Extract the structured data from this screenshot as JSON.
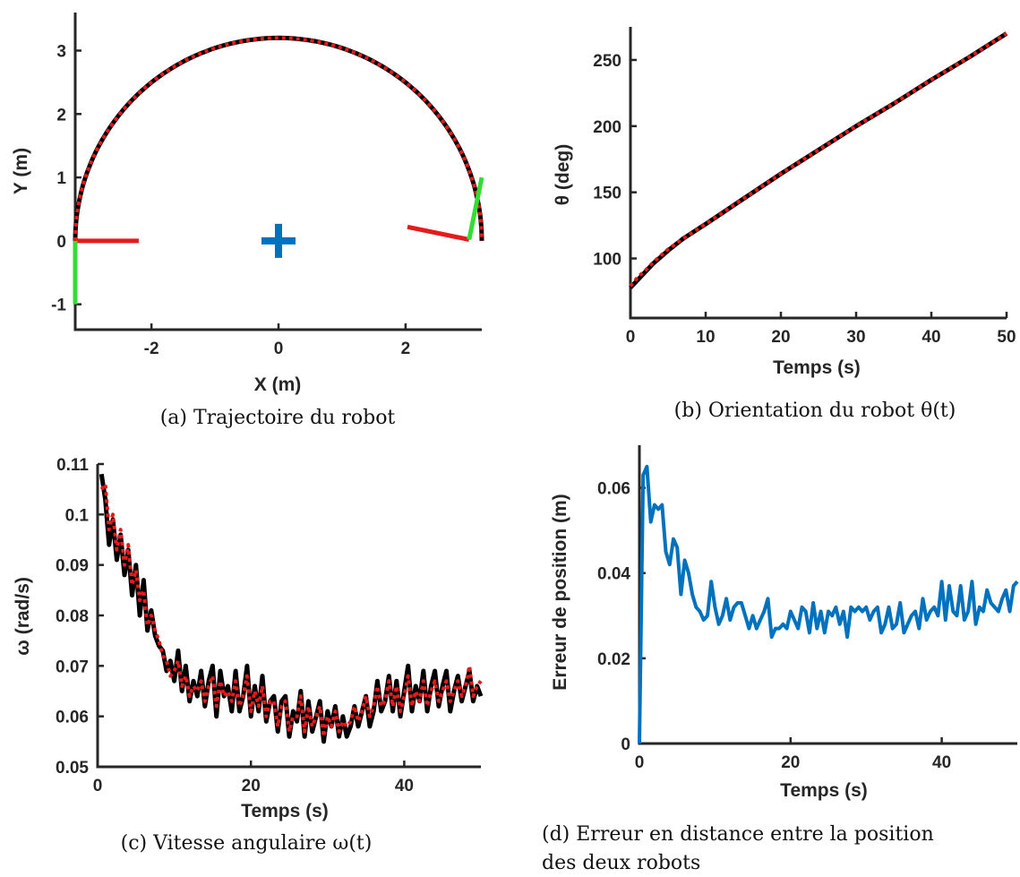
{
  "captions": {
    "a": "(a) Trajectoire du robot",
    "b": "(b) Orientation du robot θ(t)",
    "c": "(c) Vitesse angulaire ω(t)",
    "d_line1": "(d) Erreur en distance entre la position",
    "d_line2": "des deux robots"
  },
  "colors": {
    "ref": "#000000",
    "robot": "#e41a1c",
    "green": "#33dd33",
    "blue": "#0072bd"
  },
  "chart_data": [
    {
      "id": "a",
      "type": "line",
      "xlabel": "X (m)",
      "ylabel": "Y (m)",
      "xlim": [
        -3.2,
        3.2
      ],
      "ylim": [
        -1.4,
        3.6
      ],
      "xticks": [
        -2,
        0,
        2
      ],
      "yticks": [
        -1,
        0,
        1,
        2,
        3
      ],
      "series": [
        {
          "style": "solid-black",
          "shape": "semicircle",
          "center": [
            0,
            0
          ],
          "radius": 3.2,
          "from_deg": 180,
          "to_deg": 0
        },
        {
          "style": "dotted-red",
          "shape": "semicircle",
          "center": [
            0,
            0
          ],
          "radius": 3.2,
          "from_deg": 180,
          "to_deg": 0
        }
      ],
      "annotations": [
        {
          "type": "segment",
          "color": "red",
          "from": [
            -3.2,
            0
          ],
          "to": [
            -2.2,
            0
          ]
        },
        {
          "type": "segment",
          "color": "green",
          "from": [
            -3.2,
            0
          ],
          "to": [
            -3.2,
            -1
          ]
        },
        {
          "type": "segment",
          "color": "red",
          "from": [
            3.0,
            0.02
          ],
          "to": [
            2.03,
            0.22
          ]
        },
        {
          "type": "segment",
          "color": "green",
          "from": [
            3.0,
            0.02
          ],
          "to": [
            3.2,
            1.0
          ]
        },
        {
          "type": "marker",
          "symbol": "+",
          "color": "blue",
          "at": [
            0,
            0
          ]
        }
      ]
    },
    {
      "id": "b",
      "type": "line",
      "xlabel": "Temps (s)",
      "ylabel": "θ (deg)",
      "xlim": [
        0,
        50
      ],
      "ylim": [
        55,
        275
      ],
      "xticks": [
        0,
        10,
        20,
        30,
        40,
        50
      ],
      "yticks": [
        100,
        150,
        200,
        250
      ],
      "series": [
        {
          "style": "solid-black",
          "x": [
            0,
            1,
            2,
            3,
            5,
            7,
            10,
            15,
            20,
            25,
            30,
            35,
            40,
            45,
            50
          ],
          "y": [
            78,
            84,
            90,
            96,
            106,
            115,
            126,
            145,
            164,
            182,
            200,
            217,
            235,
            252,
            270
          ]
        },
        {
          "style": "dotted-red",
          "x": [
            0,
            1,
            2,
            3,
            5,
            7,
            10,
            15,
            20,
            25,
            30,
            35,
            40,
            45,
            50
          ],
          "y": [
            79,
            86,
            91,
            97,
            107,
            115,
            126,
            145,
            164,
            182,
            200,
            217,
            235,
            252,
            270
          ]
        }
      ]
    },
    {
      "id": "c",
      "type": "line",
      "xlabel": "Temps (s)",
      "ylabel": "ω (rad/s)",
      "xlim": [
        0,
        50
      ],
      "ylim": [
        0.05,
        0.11
      ],
      "xticks": [
        0,
        20,
        40
      ],
      "yticks": [
        0.05,
        0.06,
        0.07,
        0.08,
        0.09,
        0.1,
        0.11
      ],
      "yticklabels": [
        "0.05",
        "0.06",
        "0.07",
        "0.08",
        "0.09",
        "0.1",
        "0.11"
      ],
      "series": [
        {
          "style": "solid-black",
          "x": [
            0.5,
            1,
            1.5,
            2,
            2.5,
            3,
            3.5,
            4,
            4.5,
            5,
            5.5,
            6,
            6.5,
            7,
            7.5,
            8,
            8.5,
            9,
            9.5,
            10,
            10.5,
            11,
            11.5,
            12,
            12.5,
            13,
            13.5,
            14,
            14.5,
            15,
            15.5,
            16,
            16.5,
            17,
            17.5,
            18,
            18.5,
            19,
            19.5,
            20,
            20.5,
            21,
            21.5,
            22,
            22.5,
            23,
            23.5,
            24,
            24.5,
            25,
            25.5,
            26,
            26.5,
            27,
            27.5,
            28,
            28.5,
            29,
            29.5,
            30,
            30.5,
            31,
            31.5,
            32,
            32.5,
            33,
            33.5,
            34,
            34.5,
            35,
            35.5,
            36,
            36.5,
            37,
            37.5,
            38,
            38.5,
            39,
            39.5,
            40,
            40.5,
            41,
            41.5,
            42,
            42.5,
            43,
            43.5,
            44,
            44.5,
            45,
            45.5,
            46,
            46.5,
            47,
            47.5,
            48,
            48.5,
            49,
            49.5,
            50
          ],
          "y": [
            0.108,
            0.103,
            0.094,
            0.099,
            0.091,
            0.096,
            0.088,
            0.093,
            0.084,
            0.09,
            0.08,
            0.087,
            0.077,
            0.081,
            0.076,
            0.074,
            0.073,
            0.069,
            0.071,
            0.067,
            0.073,
            0.065,
            0.07,
            0.063,
            0.067,
            0.064,
            0.069,
            0.062,
            0.067,
            0.07,
            0.06,
            0.069,
            0.064,
            0.066,
            0.061,
            0.069,
            0.061,
            0.064,
            0.07,
            0.06,
            0.066,
            0.061,
            0.068,
            0.059,
            0.063,
            0.064,
            0.057,
            0.063,
            0.064,
            0.056,
            0.061,
            0.059,
            0.065,
            0.056,
            0.063,
            0.057,
            0.06,
            0.063,
            0.055,
            0.061,
            0.058,
            0.062,
            0.056,
            0.06,
            0.056,
            0.058,
            0.062,
            0.058,
            0.061,
            0.064,
            0.058,
            0.061,
            0.067,
            0.061,
            0.063,
            0.068,
            0.061,
            0.067,
            0.06,
            0.065,
            0.07,
            0.061,
            0.066,
            0.063,
            0.069,
            0.061,
            0.066,
            0.069,
            0.062,
            0.066,
            0.069,
            0.061,
            0.065,
            0.068,
            0.063,
            0.066,
            0.069,
            0.063,
            0.066,
            0.064
          ]
        },
        {
          "style": "dotted-red",
          "x": [
            0.5,
            1,
            1.5,
            2,
            2.5,
            3,
            3.5,
            4,
            4.5,
            5,
            5.5,
            6,
            6.5,
            7,
            7.5,
            8,
            8.5,
            9,
            9.5,
            10,
            10.5,
            11,
            11.5,
            12,
            12.5,
            13,
            13.5,
            14,
            14.5,
            15,
            15.5,
            16,
            16.5,
            17,
            17.5,
            18,
            18.5,
            19,
            19.5,
            20,
            20.5,
            21,
            21.5,
            22,
            22.5,
            23,
            23.5,
            24,
            24.5,
            25,
            25.5,
            26,
            26.5,
            27,
            27.5,
            28,
            28.5,
            29,
            29.5,
            30,
            30.5,
            31,
            31.5,
            32,
            32.5,
            33,
            33.5,
            34,
            34.5,
            35,
            35.5,
            36,
            36.5,
            37,
            37.5,
            38,
            38.5,
            39,
            39.5,
            40,
            40.5,
            41,
            41.5,
            42,
            42.5,
            43,
            43.5,
            44,
            44.5,
            45,
            45.5,
            46,
            46.5,
            47,
            47.5,
            48,
            48.5,
            49,
            49.5,
            50
          ],
          "y": [
            0.105,
            0.106,
            0.097,
            0.1,
            0.093,
            0.097,
            0.09,
            0.094,
            0.086,
            0.089,
            0.083,
            0.085,
            0.078,
            0.08,
            0.077,
            0.075,
            0.072,
            0.071,
            0.068,
            0.069,
            0.071,
            0.066,
            0.068,
            0.064,
            0.066,
            0.065,
            0.067,
            0.063,
            0.066,
            0.068,
            0.062,
            0.067,
            0.064,
            0.065,
            0.063,
            0.067,
            0.062,
            0.064,
            0.068,
            0.061,
            0.065,
            0.062,
            0.066,
            0.06,
            0.063,
            0.063,
            0.058,
            0.062,
            0.063,
            0.057,
            0.06,
            0.06,
            0.064,
            0.057,
            0.062,
            0.058,
            0.06,
            0.062,
            0.056,
            0.06,
            0.058,
            0.061,
            0.057,
            0.059,
            0.058,
            0.059,
            0.062,
            0.059,
            0.061,
            0.064,
            0.06,
            0.062,
            0.066,
            0.062,
            0.063,
            0.067,
            0.062,
            0.066,
            0.061,
            0.064,
            0.068,
            0.062,
            0.065,
            0.063,
            0.067,
            0.062,
            0.065,
            0.067,
            0.063,
            0.065,
            0.067,
            0.063,
            0.065,
            0.067,
            0.064,
            0.066,
            0.07,
            0.064,
            0.066,
            0.067
          ]
        }
      ]
    },
    {
      "id": "d",
      "type": "line",
      "xlabel": "Temps (s)",
      "ylabel": "Erreur de position (m)",
      "xlim": [
        0,
        50
      ],
      "ylim": [
        0,
        0.07
      ],
      "xticks": [
        0,
        20,
        40
      ],
      "yticks": [
        0,
        0.02,
        0.04,
        0.06
      ],
      "yticklabels": [
        "0",
        "0.02",
        "0.04",
        "0.06"
      ],
      "series": [
        {
          "style": "solid-blue",
          "x": [
            0,
            0.5,
            1,
            1.5,
            2,
            2.5,
            3,
            3.5,
            4,
            4.5,
            5,
            5.5,
            6,
            6.5,
            7,
            7.5,
            8,
            8.5,
            9,
            9.5,
            10,
            10.5,
            11,
            11.5,
            12,
            12.5,
            13,
            13.5,
            14,
            14.5,
            15,
            15.5,
            16,
            16.5,
            17,
            17.5,
            18,
            18.5,
            19,
            19.5,
            20,
            20.5,
            21,
            21.5,
            22,
            22.5,
            23,
            23.5,
            24,
            24.5,
            25,
            25.5,
            26,
            26.5,
            27,
            27.5,
            28,
            28.5,
            29,
            29.5,
            30,
            30.5,
            31,
            31.5,
            32,
            32.5,
            33,
            33.5,
            34,
            34.5,
            35,
            35.5,
            36,
            36.5,
            37,
            37.5,
            38,
            38.5,
            39,
            39.5,
            40,
            40.5,
            41,
            41.5,
            42,
            42.5,
            43,
            43.5,
            44,
            44.5,
            45,
            45.5,
            46,
            46.5,
            47,
            47.5,
            48,
            48.5,
            49,
            49.5,
            50
          ],
          "y": [
            0,
            0.063,
            0.065,
            0.052,
            0.056,
            0.055,
            0.056,
            0.045,
            0.042,
            0.048,
            0.046,
            0.035,
            0.043,
            0.04,
            0.035,
            0.032,
            0.031,
            0.029,
            0.03,
            0.038,
            0.032,
            0.028,
            0.03,
            0.034,
            0.029,
            0.032,
            0.033,
            0.033,
            0.03,
            0.027,
            0.03,
            0.027,
            0.029,
            0.031,
            0.034,
            0.025,
            0.027,
            0.027,
            0.028,
            0.027,
            0.031,
            0.029,
            0.027,
            0.032,
            0.031,
            0.026,
            0.033,
            0.027,
            0.031,
            0.026,
            0.031,
            0.03,
            0.032,
            0.028,
            0.031,
            0.025,
            0.032,
            0.031,
            0.032,
            0.031,
            0.032,
            0.029,
            0.031,
            0.032,
            0.026,
            0.028,
            0.032,
            0.027,
            0.028,
            0.033,
            0.026,
            0.028,
            0.03,
            0.031,
            0.027,
            0.034,
            0.029,
            0.031,
            0.032,
            0.03,
            0.038,
            0.029,
            0.037,
            0.031,
            0.03,
            0.037,
            0.029,
            0.031,
            0.038,
            0.028,
            0.032,
            0.031,
            0.036,
            0.033,
            0.032,
            0.031,
            0.034,
            0.036,
            0.031,
            0.037,
            0.038
          ]
        }
      ]
    }
  ]
}
